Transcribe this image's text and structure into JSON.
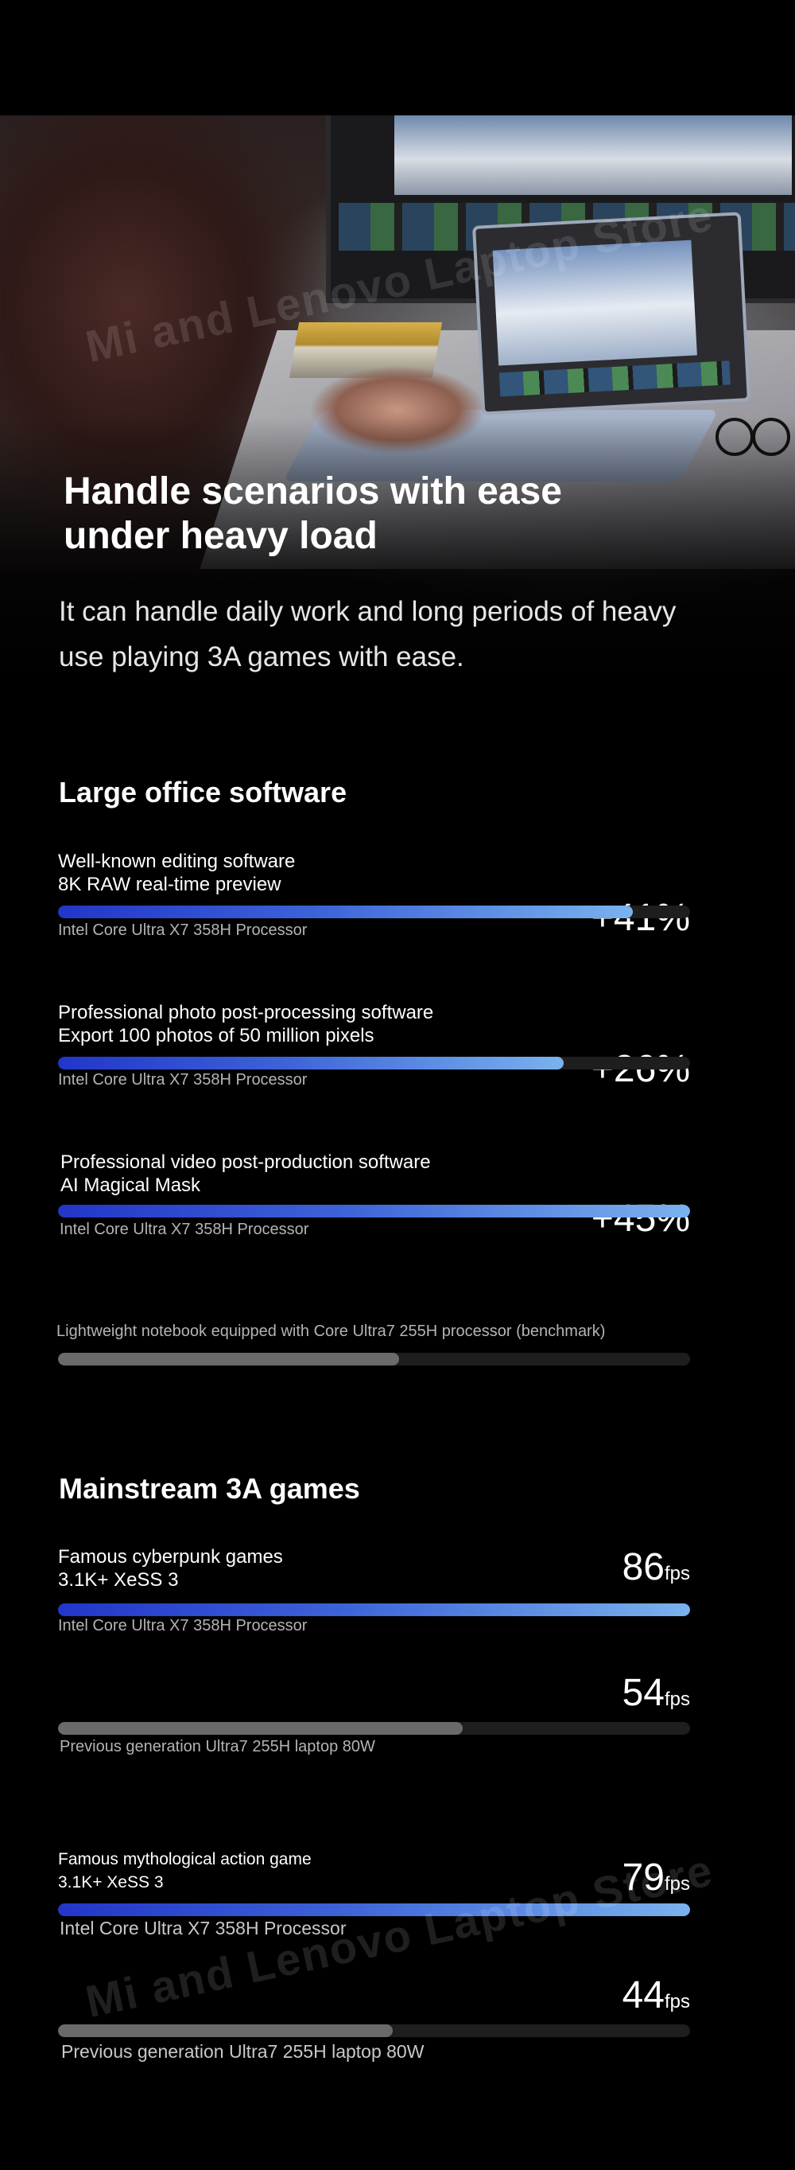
{
  "hero": {
    "title": "Handle scenarios with ease under heavy load",
    "subtitle": "It can handle daily work and long periods of heavy use playing 3A games with ease.",
    "watermark": "Mi and Lenovo Laptop Store"
  },
  "office": {
    "title": "Large office software",
    "items": [
      {
        "label": "Well-known editing software\n8K RAW real-time preview",
        "gain": "+41%",
        "processor": "Intel Core Ultra X7 358H Processor",
        "progress": 0.91
      },
      {
        "label": "Professional photo post-processing software\nExport 100 photos of 50 million pixels",
        "gain": "+26%",
        "processor": "Intel Core Ultra X7 358H Processor",
        "progress": 0.8
      },
      {
        "label": "Professional video post-production software\nAI Magical Mask",
        "gain": "+45%",
        "processor": "Intel Core Ultra X7 358H Processor",
        "progress": 1.0
      }
    ],
    "baseline": {
      "label": "Lightweight notebook equipped with Core Ultra7 255H processor (benchmark)",
      "progress": 0.54
    }
  },
  "games": {
    "title": "Mainstream 3A games",
    "items": [
      {
        "label": "Famous cyberpunk games\n3.1K+ XeSS 3",
        "new": {
          "value": "86",
          "unit": "fps",
          "processor": "Intel Core Ultra X7 358H Processor",
          "progress": 1.0
        },
        "old": {
          "value": "54",
          "unit": "fps",
          "processor": "Previous generation Ultra7 255H laptop 80W",
          "progress": 0.64
        }
      },
      {
        "label": "Famous mythological action game\n3.1K+ XeSS 3",
        "new": {
          "value": "79",
          "unit": "fps",
          "processor": "Intel Core Ultra X7 358H Processor",
          "progress": 1.0
        },
        "old": {
          "value": "44",
          "unit": "fps",
          "processor": "Previous generation Ultra7 255H laptop 80W",
          "progress": 0.53
        }
      }
    ]
  }
}
